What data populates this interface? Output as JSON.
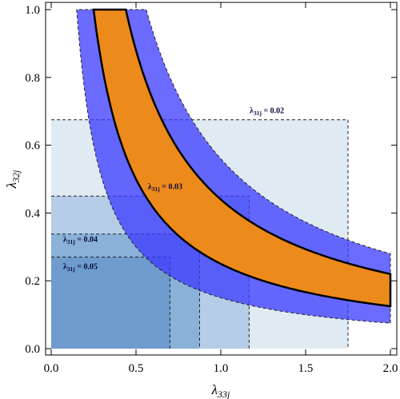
{
  "chart_data": {
    "type": "area",
    "xlabel": "λ33j",
    "ylabel": "λ32j",
    "xlim": [
      0.0,
      2.0
    ],
    "ylim": [
      0.0,
      1.0
    ],
    "x_ticks": [
      "0.0",
      "0.5",
      "1.0",
      "1.5",
      "2.0"
    ],
    "y_ticks": [
      "0.0",
      "0.2",
      "0.4",
      "0.6",
      "0.8",
      "1.0"
    ],
    "grid": false,
    "bounds": [
      {
        "label": "λ31j = 0.02",
        "label_parts": [
          "λ",
          "31j",
          " = 0.02"
        ],
        "x": 1.75,
        "y": 0.675
      },
      {
        "label": "λ31j = 0.03",
        "label_parts": [
          "λ",
          "31j",
          " = 0.03"
        ],
        "x": 1.167,
        "y": 0.45
      },
      {
        "label": "λ31j = 0.04",
        "label_parts": [
          "λ",
          "31j",
          " = 0.04"
        ],
        "x": 0.875,
        "y": 0.338
      },
      {
        "label": "λ31j = 0.05",
        "label_parts": [
          "λ",
          "31j",
          " = 0.05"
        ],
        "x": 0.7,
        "y": 0.27
      }
    ],
    "bands": [
      {
        "k_low": 0.15,
        "k_high": 0.56,
        "style": "dashed"
      },
      {
        "k_low": 0.25,
        "k_high": 0.44,
        "style": "solid"
      }
    ],
    "colors": {
      "bounds_fill": [
        "#e0eaf3",
        "#b5cde6",
        "#8ab1d8",
        "#6e9ccd"
      ],
      "outer_band": "#3a3aff",
      "inner_band": "#ed8a1c"
    }
  }
}
